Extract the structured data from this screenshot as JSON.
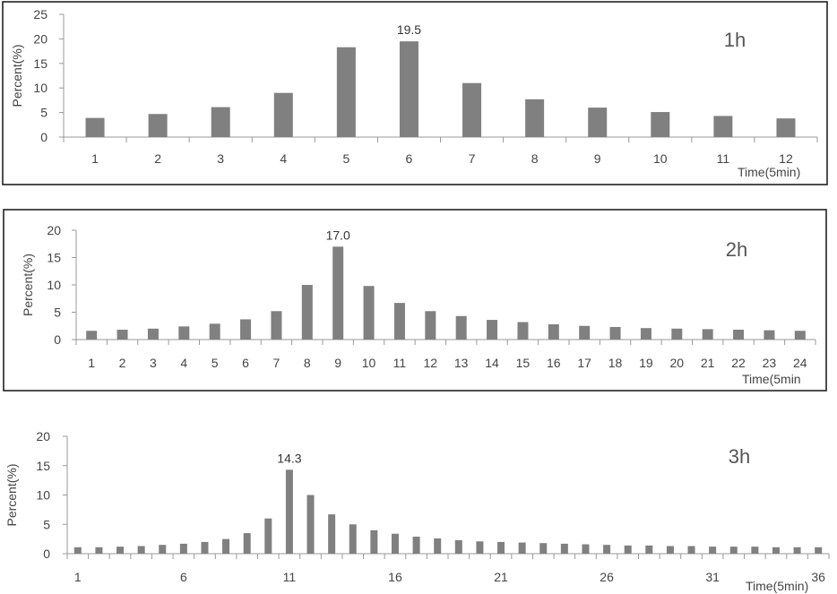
{
  "chart_data": [
    {
      "type": "bar",
      "panel_label": "1h",
      "categories": [
        "1",
        "2",
        "3",
        "4",
        "5",
        "6",
        "7",
        "8",
        "9",
        "10",
        "11",
        "12"
      ],
      "values": [
        3.9,
        4.7,
        6.1,
        9.0,
        18.3,
        19.5,
        11.0,
        7.7,
        6.0,
        5.1,
        4.3,
        3.8
      ],
      "xlabel": "Time(5min)",
      "ylabel": "Percent(%)",
      "ylim": [
        0,
        25
      ],
      "yticks": [
        0,
        5,
        10,
        15,
        20,
        25
      ],
      "xtick_labels": [
        "1",
        "2",
        "3",
        "4",
        "5",
        "6",
        "7",
        "8",
        "9",
        "10",
        "11",
        "12"
      ],
      "peak_label": "19.5",
      "bar_color": "#808080",
      "grid": false,
      "framed": true
    },
    {
      "type": "bar",
      "panel_label": "2h",
      "categories": [
        "1",
        "2",
        "3",
        "4",
        "5",
        "6",
        "7",
        "8",
        "9",
        "10",
        "11",
        "12",
        "13",
        "14",
        "15",
        "16",
        "17",
        "18",
        "19",
        "20",
        "21",
        "22",
        "23",
        "24"
      ],
      "values": [
        1.6,
        1.8,
        2.0,
        2.4,
        2.9,
        3.7,
        5.2,
        10.0,
        17.0,
        9.8,
        6.7,
        5.2,
        4.3,
        3.6,
        3.2,
        2.8,
        2.5,
        2.3,
        2.1,
        2.0,
        1.9,
        1.8,
        1.7,
        1.6
      ],
      "xlabel": "Time(5min",
      "ylabel": "Percent(%)",
      "ylim": [
        0,
        20
      ],
      "yticks": [
        0,
        5,
        10,
        15,
        20
      ],
      "xtick_labels": [
        "1",
        "2",
        "3",
        "4",
        "5",
        "6",
        "7",
        "8",
        "9",
        "10",
        "11",
        "12",
        "13",
        "14",
        "15",
        "16",
        "17",
        "18",
        "19",
        "20",
        "21",
        "22",
        "23",
        "24"
      ],
      "peak_label": "17.0",
      "bar_color": "#808080",
      "grid": false,
      "framed": true
    },
    {
      "type": "bar",
      "panel_label": "3h",
      "categories": [
        "1",
        "2",
        "3",
        "4",
        "5",
        "6",
        "7",
        "8",
        "9",
        "10",
        "11",
        "12",
        "13",
        "14",
        "15",
        "16",
        "17",
        "18",
        "19",
        "20",
        "21",
        "22",
        "23",
        "24",
        "25",
        "26",
        "27",
        "28",
        "29",
        "30",
        "31",
        "32",
        "33",
        "34",
        "35",
        "36"
      ],
      "values": [
        1.1,
        1.1,
        1.2,
        1.3,
        1.5,
        1.7,
        2.0,
        2.5,
        3.5,
        6.0,
        14.3,
        10.0,
        6.7,
        5.0,
        4.0,
        3.4,
        2.9,
        2.6,
        2.3,
        2.1,
        2.0,
        1.9,
        1.8,
        1.7,
        1.6,
        1.5,
        1.4,
        1.4,
        1.3,
        1.3,
        1.2,
        1.2,
        1.2,
        1.1,
        1.1,
        1.1
      ],
      "xlabel": "Time(5min)",
      "ylabel": "Percent(%)",
      "ylim": [
        0,
        20
      ],
      "yticks": [
        0,
        5,
        10,
        15,
        20
      ],
      "xtick_labels": [
        "1",
        "6",
        "11",
        "16",
        "21",
        "26",
        "31",
        "36"
      ],
      "peak_label": "14.3",
      "bar_color": "#808080",
      "grid": false,
      "framed": false
    }
  ]
}
